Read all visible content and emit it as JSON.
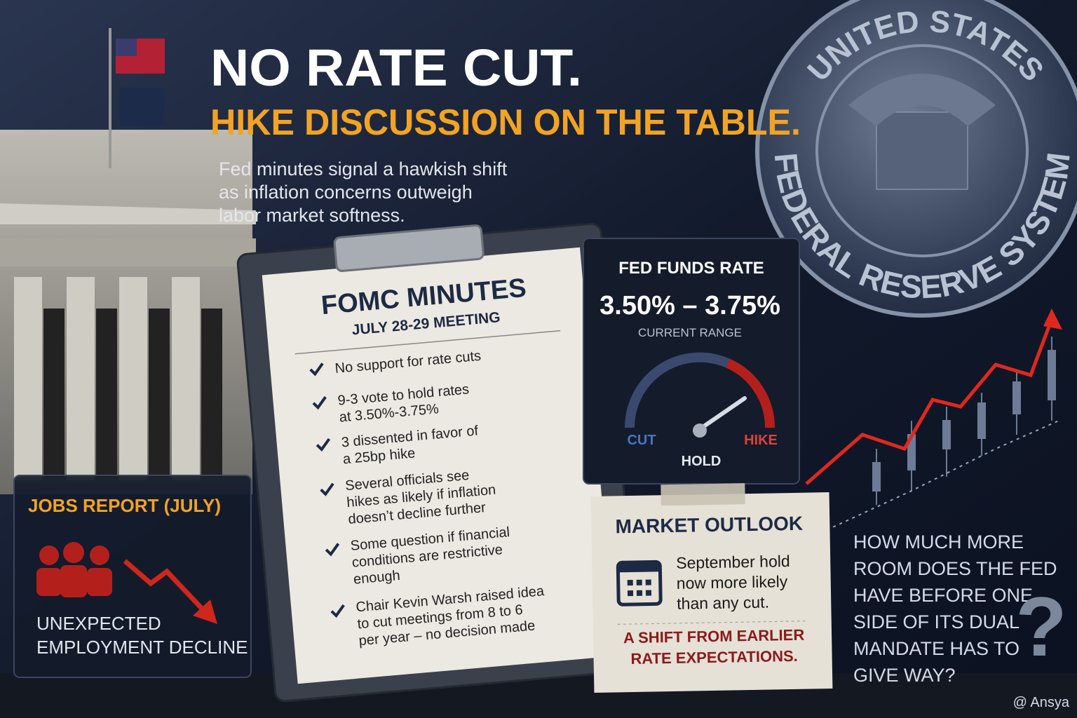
{
  "headline": "NO RATE CUT.",
  "subheadline": "HIKE DISCUSSION ON THE TABLE.",
  "description": [
    "Fed minutes signal a hawkish shift",
    "as inflation concerns outweigh",
    "labor market softness."
  ],
  "seal": {
    "top": "UNITED STATES",
    "bottom": "FEDERAL RESERVE SYSTEM"
  },
  "minutes": {
    "title": "FOMC MINUTES",
    "subtitle": "JULY 28-29 MEETING",
    "items": [
      [
        "No support for rate cuts"
      ],
      [
        "9-3 vote to hold rates",
        "at 3.50%-3.75%"
      ],
      [
        "3 dissented in favor of",
        "a 25bp hike"
      ],
      [
        "Several officials see",
        "hikes as likely if inflation",
        "doesn’t decline further"
      ],
      [
        "Some question if financial",
        "conditions are restrictive",
        "enough"
      ],
      [
        "Chair Kevin Warsh raised idea",
        "to cut meetings from 8 to 6",
        "per year – no decision made"
      ]
    ]
  },
  "rate_card": {
    "title": "FED FUNDS RATE",
    "range": "3.50% – 3.75%",
    "caption": "CURRENT RANGE",
    "gauge": {
      "left": "CUT",
      "center": "HOLD",
      "right": "HIKE"
    }
  },
  "jobs_card": {
    "title": "JOBS REPORT (JULY)",
    "text": [
      "UNEXPECTED",
      "EMPLOYMENT DECLINE"
    ]
  },
  "market_outlook": {
    "title": "MARKET OUTLOOK",
    "text": [
      "September hold",
      "now more likely",
      "than any cut."
    ],
    "note": [
      "A SHIFT FROM EARLIER",
      "RATE EXPECTATIONS."
    ]
  },
  "question": [
    "HOW MUCH MORE",
    "ROOM DOES THE FED",
    "HAVE BEFORE ONE",
    "SIDE OF ITS DUAL",
    "MANDATE HAS TO",
    "GIVE WAY?"
  ],
  "question_mark": "?",
  "watermark": "@ Ansya"
}
